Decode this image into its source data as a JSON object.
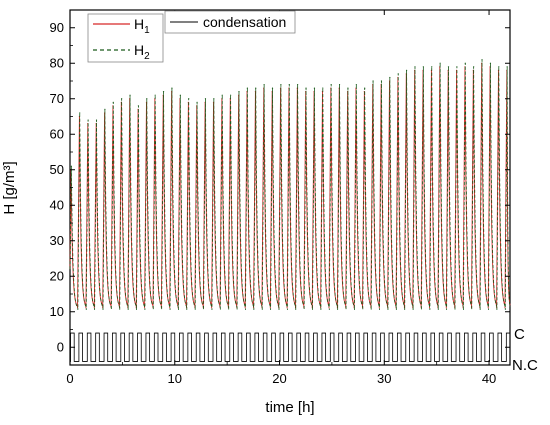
{
  "chart_data": {
    "type": "line",
    "xlabel": "time [h]",
    "ylabel": "H [g/m³]",
    "xlim": [
      0,
      42
    ],
    "ylim": [
      -5,
      95
    ],
    "x_ticks": [
      0,
      10,
      20,
      30,
      40
    ],
    "y_ticks": [
      0,
      10,
      20,
      30,
      40,
      50,
      60,
      70,
      80,
      90
    ],
    "grid": false,
    "legend": {
      "placement": "top-left",
      "entries": [
        {
          "label": "H",
          "subscript": "1",
          "color": "#d62728",
          "style": "solid"
        },
        {
          "label": "H",
          "subscript": "2",
          "color": "#1a5a1a",
          "style": "dashed"
        },
        {
          "label": "condensation",
          "color": "#000000",
          "style": "solid"
        }
      ]
    },
    "condensation_levels": {
      "C": 4,
      "N.C": -4,
      "label_c": "C",
      "label_nc": "N.C"
    },
    "cycle_period_h": 0.8,
    "series": [
      {
        "name": "H1",
        "color": "#d62728",
        "peak_times": [
          0.1,
          0.9,
          1.7,
          2.5,
          3.3,
          4.1,
          4.9,
          5.7,
          6.5,
          7.3,
          8.1,
          8.9,
          9.7,
          10.5,
          11.3,
          12.1,
          12.9,
          13.7,
          14.5,
          15.3,
          16.1,
          16.9,
          17.7,
          18.5,
          19.3,
          20.1,
          20.9,
          21.7,
          22.5,
          23.3,
          24.1,
          24.9,
          25.7,
          26.5,
          27.3,
          28.1,
          28.9,
          29.7,
          30.5,
          31.3,
          32.1,
          32.9,
          33.7,
          34.5,
          35.3,
          36.1,
          36.9,
          37.7,
          38.5,
          39.3,
          40.1,
          40.9,
          41.7
        ],
        "peak_values": [
          50,
          65,
          63,
          63,
          66,
          68,
          69,
          70,
          67,
          69,
          70,
          71,
          72,
          70,
          69,
          68,
          69,
          69,
          70,
          70,
          71,
          72,
          72,
          73,
          72,
          73,
          73,
          73,
          72,
          72,
          72,
          73,
          73,
          72,
          73,
          72,
          74,
          74,
          75,
          76,
          77,
          78,
          78,
          78,
          79,
          78,
          78,
          79,
          78,
          80,
          79,
          78,
          78
        ],
        "trough_value": 11
      },
      {
        "name": "H2",
        "color": "#1a5a1a",
        "peak_times": [
          0.1,
          0.9,
          1.7,
          2.5,
          3.3,
          4.1,
          4.9,
          5.7,
          6.5,
          7.3,
          8.1,
          8.9,
          9.7,
          10.5,
          11.3,
          12.1,
          12.9,
          13.7,
          14.5,
          15.3,
          16.1,
          16.9,
          17.7,
          18.5,
          19.3,
          20.1,
          20.9,
          21.7,
          22.5,
          23.3,
          24.1,
          24.9,
          25.7,
          26.5,
          27.3,
          28.1,
          28.9,
          29.7,
          30.5,
          31.3,
          32.1,
          32.9,
          33.7,
          34.5,
          35.3,
          36.1,
          36.9,
          37.7,
          38.5,
          39.3,
          40.1,
          40.9,
          41.7
        ],
        "peak_values": [
          51,
          66,
          64,
          64,
          67,
          69,
          70,
          71,
          68,
          70,
          71,
          72,
          73,
          71,
          70,
          69,
          70,
          70,
          71,
          71,
          72,
          73,
          73,
          74,
          73,
          74,
          74,
          74,
          73,
          73,
          73,
          74,
          74,
          73,
          74,
          73,
          75,
          75,
          76,
          77,
          78,
          79,
          79,
          79,
          80,
          79,
          79,
          80,
          79,
          81,
          80,
          79,
          79
        ],
        "trough_value": 10.5
      }
    ]
  }
}
